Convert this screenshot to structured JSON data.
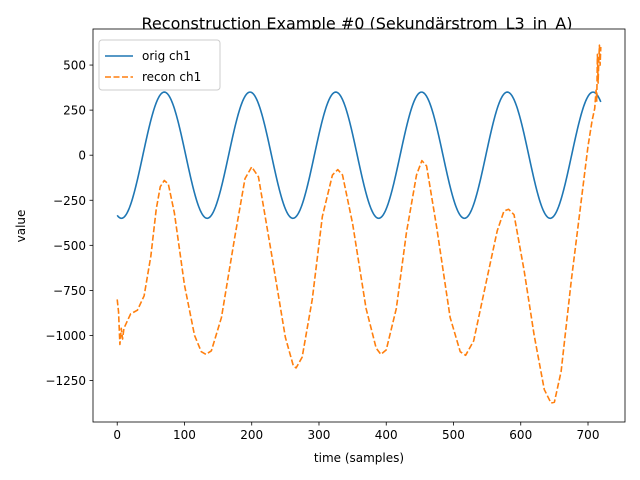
{
  "chart_data": {
    "type": "line",
    "title": "Reconstruction Example #0 (Sekundärstrom_L3_in_A)",
    "xlabel": "time (samples)",
    "ylabel": "value",
    "xlim": [
      -36,
      755
    ],
    "ylim": [
      -1480,
      700
    ],
    "grid": false,
    "legend_position": "top-left",
    "xticks": [
      0,
      100,
      200,
      300,
      400,
      500,
      600,
      700
    ],
    "xtick_labels": [
      "0",
      "100",
      "200",
      "300",
      "400",
      "500",
      "600",
      "700"
    ],
    "yticks": [
      500,
      250,
      0,
      -250,
      -500,
      -750,
      -1000,
      -1250
    ],
    "ytick_labels": [
      "500",
      "250",
      "0",
      "−250",
      "−500",
      "−750",
      "−1000",
      "−1250"
    ],
    "series": [
      {
        "name": "orig ch1",
        "color": "#1f77b4",
        "style": "solid",
        "n": 720,
        "period": 127.5,
        "amplitude": 350,
        "peak_at": 70
      },
      {
        "name": "recon ch1",
        "color": "#ff7f0e",
        "style": "dashed",
        "points": [
          [
            0,
            -800
          ],
          [
            2,
            -870
          ],
          [
            4,
            -1050
          ],
          [
            6,
            -960
          ],
          [
            8,
            -1020
          ],
          [
            10,
            -960
          ],
          [
            15,
            -920
          ],
          [
            20,
            -880
          ],
          [
            30,
            -860
          ],
          [
            40,
            -780
          ],
          [
            50,
            -560
          ],
          [
            58,
            -300
          ],
          [
            64,
            -175
          ],
          [
            70,
            -140
          ],
          [
            76,
            -160
          ],
          [
            85,
            -320
          ],
          [
            100,
            -720
          ],
          [
            115,
            -1000
          ],
          [
            125,
            -1090
          ],
          [
            132,
            -1105
          ],
          [
            140,
            -1085
          ],
          [
            155,
            -900
          ],
          [
            175,
            -450
          ],
          [
            190,
            -130
          ],
          [
            200,
            -65
          ],
          [
            210,
            -120
          ],
          [
            230,
            -560
          ],
          [
            250,
            -1010
          ],
          [
            262,
            -1170
          ],
          [
            266,
            -1180
          ],
          [
            275,
            -1120
          ],
          [
            290,
            -800
          ],
          [
            305,
            -340
          ],
          [
            320,
            -110
          ],
          [
            328,
            -80
          ],
          [
            335,
            -110
          ],
          [
            350,
            -380
          ],
          [
            370,
            -850
          ],
          [
            385,
            -1070
          ],
          [
            392,
            -1105
          ],
          [
            400,
            -1080
          ],
          [
            415,
            -850
          ],
          [
            430,
            -430
          ],
          [
            445,
            -110
          ],
          [
            453,
            -30
          ],
          [
            460,
            -60
          ],
          [
            475,
            -400
          ],
          [
            495,
            -900
          ],
          [
            510,
            -1090
          ],
          [
            518,
            -1110
          ],
          [
            530,
            -1030
          ],
          [
            550,
            -680
          ],
          [
            565,
            -420
          ],
          [
            575,
            -310
          ],
          [
            582,
            -300
          ],
          [
            590,
            -330
          ],
          [
            605,
            -640
          ],
          [
            620,
            -1000
          ],
          [
            635,
            -1300
          ],
          [
            645,
            -1375
          ],
          [
            650,
            -1370
          ],
          [
            660,
            -1200
          ],
          [
            675,
            -700
          ],
          [
            690,
            -250
          ],
          [
            700,
            50
          ],
          [
            706,
            190
          ],
          [
            710,
            260
          ],
          [
            712,
            360
          ],
          [
            713,
            300
          ],
          [
            714,
            560
          ],
          [
            715,
            400
          ],
          [
            716,
            520
          ],
          [
            717,
            610
          ],
          [
            718,
            500
          ],
          [
            719,
            600
          ]
        ]
      }
    ]
  }
}
